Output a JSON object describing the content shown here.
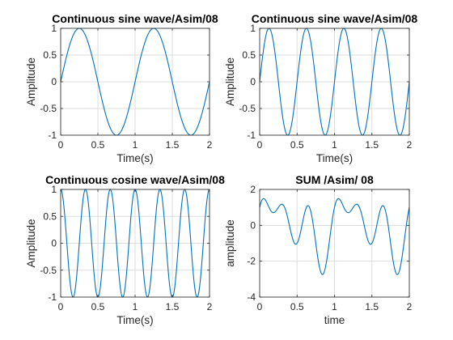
{
  "colors": {
    "line": "#0072BD",
    "grid": "#DDDDDD",
    "axis": "#262626",
    "background": "#FFFFFF"
  },
  "chart_data": [
    {
      "type": "line",
      "title": "Continuous sine wave/Asim/08",
      "xlabel": "Time(s)",
      "ylabel": "Amplitude",
      "xlim": [
        0,
        2
      ],
      "ylim": [
        -1,
        1
      ],
      "xticks": [
        0,
        0.5,
        1,
        1.5,
        2
      ],
      "xtick_labels": [
        "0",
        "0.5",
        "1",
        "1.5",
        "2"
      ],
      "yticks": [
        -1,
        -0.5,
        0,
        0.5,
        1
      ],
      "ytick_labels": [
        "-1",
        "-0.5",
        "0",
        "0.5",
        "1"
      ],
      "grid": true,
      "function": "sin(2*pi*1*t)",
      "series": [
        {
          "frequency_hz": 1,
          "amplitude": 1,
          "waveform": "sine"
        }
      ]
    },
    {
      "type": "line",
      "title": "Continuous sine wave/Asim/08",
      "xlabel": "Time(s)",
      "ylabel": "Amplitude",
      "xlim": [
        0,
        2
      ],
      "ylim": [
        -1,
        1
      ],
      "xticks": [
        0,
        0.5,
        1,
        1.5,
        2
      ],
      "xtick_labels": [
        "0",
        "0.5",
        "1",
        "1.5",
        "2"
      ],
      "yticks": [
        -1,
        -0.5,
        0,
        0.5,
        1
      ],
      "ytick_labels": [
        "-1",
        "-0.5",
        "0",
        "0.5",
        "1"
      ],
      "grid": true,
      "function": "sin(2*pi*2*t)",
      "series": [
        {
          "frequency_hz": 2,
          "amplitude": 1,
          "waveform": "sine"
        }
      ]
    },
    {
      "type": "line",
      "title": "Continuous cosine wave/Asim/08",
      "xlabel": "Time(s)",
      "ylabel": "Amplitude",
      "xlim": [
        0,
        2
      ],
      "ylim": [
        -1,
        1
      ],
      "xticks": [
        0,
        0.5,
        1,
        1.5,
        2
      ],
      "xtick_labels": [
        "0",
        "0.5",
        "1",
        "1.5",
        "2"
      ],
      "yticks": [
        -1,
        -0.5,
        0,
        0.5,
        1
      ],
      "ytick_labels": [
        "-1",
        "-0.5",
        "0",
        "0.5",
        "1"
      ],
      "grid": true,
      "function": "cos(2*pi*3*t)",
      "series": [
        {
          "frequency_hz": 3,
          "amplitude": 1,
          "waveform": "cosine"
        }
      ]
    },
    {
      "type": "line",
      "title": "SUM /Asim/ 08",
      "xlabel": "time",
      "ylabel": "amplitude",
      "xlim": [
        0,
        2
      ],
      "ylim": [
        -4,
        2
      ],
      "xticks": [
        0,
        0.5,
        1,
        1.5,
        2
      ],
      "xtick_labels": [
        "0",
        "0.5",
        "1",
        "1.5",
        "2"
      ],
      "yticks": [
        -4,
        -2,
        0,
        2
      ],
      "ytick_labels": [
        "-4",
        "-2",
        "0",
        "2"
      ],
      "grid": true,
      "function": "sin(2*pi*1*t) + sin(2*pi*2*t) + cos(2*pi*3*t)",
      "series": [
        {
          "components": [
            "sin(2*pi*1*t)",
            "sin(2*pi*2*t)",
            "cos(2*pi*3*t)"
          ]
        }
      ]
    }
  ]
}
